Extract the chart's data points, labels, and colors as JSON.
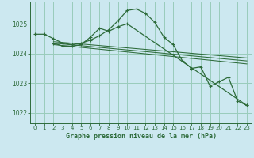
{
  "title": "Graphe pression niveau de la mer (hPa)",
  "background_color": "#cce8f0",
  "grid_color": "#99ccbb",
  "line_color": "#2d6b3a",
  "xlim": [
    -0.5,
    23.5
  ],
  "ylim": [
    1021.65,
    1025.75
  ],
  "yticks": [
    1022,
    1023,
    1024,
    1025
  ],
  "xticks": [
    0,
    1,
    2,
    3,
    4,
    5,
    6,
    7,
    8,
    9,
    10,
    11,
    12,
    13,
    14,
    15,
    16,
    17,
    18,
    19,
    20,
    21,
    22,
    23
  ],
  "series": [
    {
      "x": [
        0,
        1,
        2,
        3,
        4,
        5,
        6,
        7,
        8,
        9,
        10,
        11,
        12,
        13,
        14,
        15,
        16,
        17,
        18,
        19,
        20,
        21,
        22,
        23
      ],
      "y": [
        1024.65,
        1024.65,
        1024.5,
        1024.35,
        1024.3,
        1024.35,
        1024.45,
        1024.6,
        1024.8,
        1025.1,
        1025.45,
        1025.5,
        1025.35,
        1025.05,
        1024.55,
        1024.3,
        1023.75,
        1023.5,
        1023.55,
        1022.9,
        1023.05,
        1023.2,
        1022.4,
        1022.25
      ]
    },
    {
      "x": [
        2,
        3,
        4,
        5,
        6,
        7,
        8,
        9,
        10,
        23
      ],
      "y": [
        1024.35,
        1024.25,
        1024.25,
        1024.3,
        1024.55,
        1024.85,
        1024.75,
        1024.9,
        1025.0,
        1022.25
      ]
    },
    {
      "x": [
        2,
        23
      ],
      "y": [
        1024.4,
        1023.85
      ]
    },
    {
      "x": [
        2,
        23
      ],
      "y": [
        1024.35,
        1023.75
      ]
    },
    {
      "x": [
        2,
        23
      ],
      "y": [
        1024.3,
        1023.65
      ]
    }
  ]
}
